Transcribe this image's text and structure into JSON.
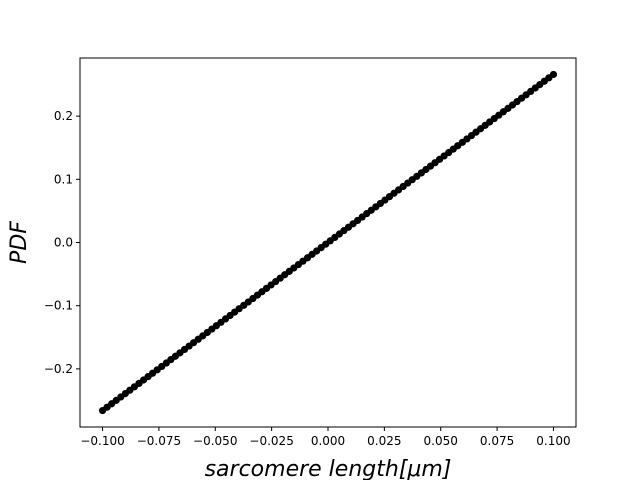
{
  "chart_data": {
    "type": "scatter",
    "title": "",
    "xlabel": "sarcomere length[μm]",
    "ylabel": "PDF",
    "xlim": [
      -0.11,
      0.11
    ],
    "ylim": [
      -0.292,
      0.292
    ],
    "xticks": [
      -0.1,
      -0.075,
      -0.05,
      -0.025,
      0.0,
      0.025,
      0.05,
      0.075,
      0.1
    ],
    "xtick_labels": [
      "−0.100",
      "−0.075",
      "−0.050",
      "−0.025",
      "0.000",
      "0.025",
      "0.050",
      "0.075",
      "0.100"
    ],
    "yticks": [
      -0.2,
      -0.1,
      0.0,
      0.1,
      0.2
    ],
    "ytick_labels": [
      "−0.2",
      "−0.1",
      "0.0",
      "0.1",
      "0.2"
    ],
    "grid": false,
    "legend": "none",
    "series": [
      {
        "color": "#000000",
        "marker": "circle",
        "x_range": [
          -0.1,
          0.1
        ],
        "y_range": [
          -0.266,
          0.266
        ],
        "num_points": 100
      }
    ]
  }
}
